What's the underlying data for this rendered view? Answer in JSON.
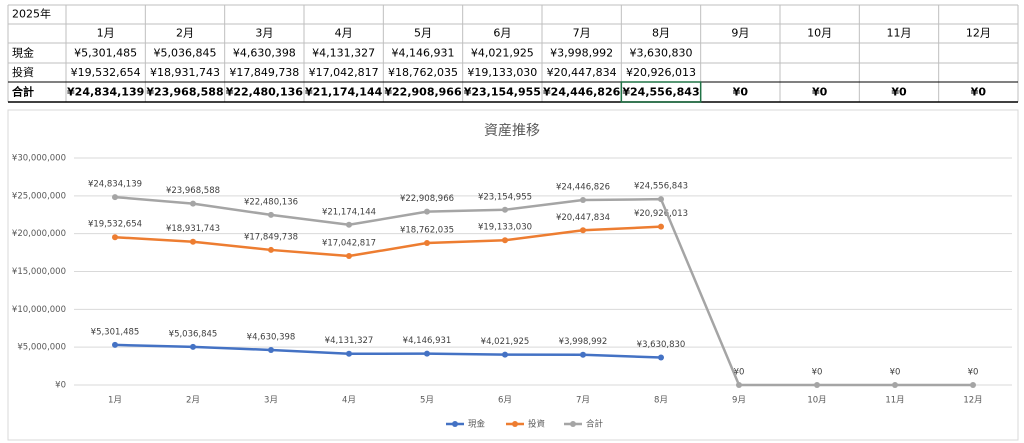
{
  "table": {
    "corner": "2025年",
    "header": [
      "1月",
      "2月",
      "3月",
      "4月",
      "5月",
      "6月",
      "7月",
      "8月",
      "9月",
      "10月",
      "11月",
      "12月"
    ],
    "rows": [
      {
        "label": "現金",
        "cells": [
          "¥5,301,485",
          "¥5,036,845",
          "¥4,630,398",
          "¥4,131,327",
          "¥4,146,931",
          "¥4,021,925",
          "¥3,998,992",
          "¥3,630,830"
        ]
      },
      {
        "label": "投資",
        "cells": [
          "¥19,532,654",
          "¥18,931,743",
          "¥17,849,738",
          "¥17,042,817",
          "¥18,762,035",
          "¥19,133,030",
          "¥20,447,834",
          "¥20,926,013"
        ]
      },
      {
        "label": "合計",
        "cells": [
          "¥24,834,139",
          "¥23,968,588",
          "¥22,480,136",
          "¥21,174,144",
          "¥22,908,966",
          "¥23,154,955",
          "¥24,446,826",
          "¥24,556,843",
          "¥0",
          "¥0",
          "¥0",
          "¥0"
        ]
      }
    ]
  },
  "chart_data": {
    "type": "line",
    "title": "資産推移",
    "categories": [
      "1月",
      "2月",
      "3月",
      "4月",
      "5月",
      "6月",
      "7月",
      "8月",
      "9月",
      "10月",
      "11月",
      "12月"
    ],
    "series": [
      {
        "name": "現金",
        "color": "#4472c4",
        "values": [
          5301485,
          5036845,
          4630398,
          4131327,
          4146931,
          4021925,
          3998992,
          3630830,
          null,
          null,
          null,
          null
        ],
        "value_labels": [
          "¥5,301,485",
          "¥5,036,845",
          "¥4,630,398",
          "¥4,131,327",
          "¥4,146,931",
          "¥4,021,925",
          "¥3,998,992",
          "¥3,630,830",
          null,
          null,
          null,
          null
        ]
      },
      {
        "name": "投資",
        "color": "#ed7d31",
        "values": [
          19532654,
          18931743,
          17849738,
          17042817,
          18762035,
          19133030,
          20447834,
          20926013,
          null,
          null,
          null,
          null
        ],
        "value_labels": [
          "¥19,532,654",
          "¥18,931,743",
          "¥17,849,738",
          "¥17,042,817",
          "¥18,762,035",
          "¥19,133,030",
          "¥20,447,834",
          "¥20,926,013",
          null,
          null,
          null,
          null
        ]
      },
      {
        "name": "合計",
        "color": "#a5a5a5",
        "values": [
          24834139,
          23968588,
          22480136,
          21174144,
          22908966,
          23154955,
          24446826,
          24556843,
          0,
          0,
          0,
          0
        ],
        "value_labels": [
          "¥24,834,139",
          "¥23,968,588",
          "¥22,480,136",
          "¥21,174,144",
          "¥22,908,966",
          "¥23,154,955",
          "¥24,446,826",
          "¥24,556,843",
          "¥0",
          "¥0",
          "¥0",
          "¥0"
        ]
      }
    ],
    "ylim": [
      0,
      30000000
    ],
    "yticks": [
      {
        "value": 0,
        "label": "¥0"
      },
      {
        "value": 5000000,
        "label": "¥5,000,000"
      },
      {
        "value": 10000000,
        "label": "¥10,000,000"
      },
      {
        "value": 15000000,
        "label": "¥15,000,000"
      },
      {
        "value": 20000000,
        "label": "¥20,000,000"
      },
      {
        "value": 25000000,
        "label": "¥25,000,000"
      },
      {
        "value": 30000000,
        "label": "¥30,000,000"
      }
    ],
    "grid": true,
    "legend": "bottom"
  }
}
